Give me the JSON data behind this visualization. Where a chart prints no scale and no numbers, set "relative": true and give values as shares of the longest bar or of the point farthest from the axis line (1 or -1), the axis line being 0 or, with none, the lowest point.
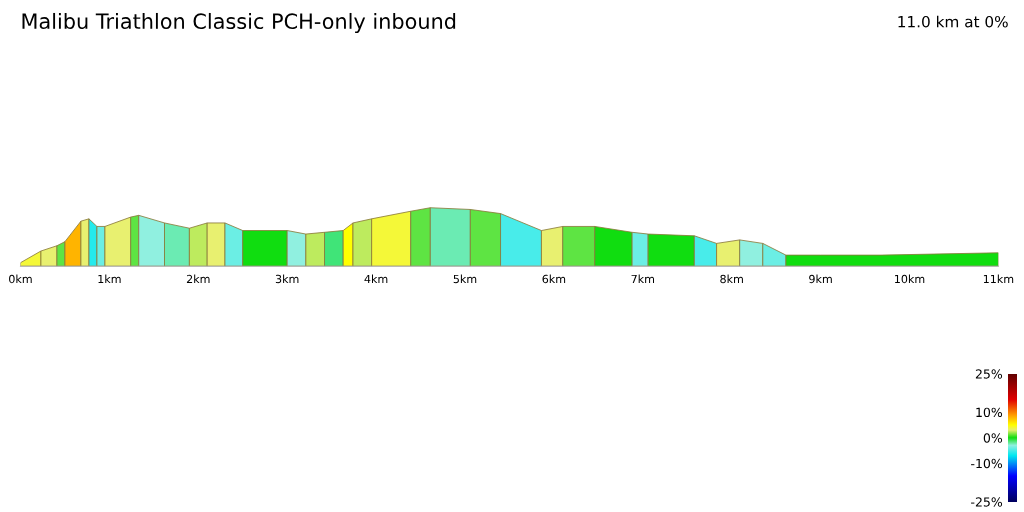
{
  "chart_data": {
    "type": "area",
    "relative": true,
    "title": "Malibu Triathlon Classic PCH-only inbound",
    "annotations": [
      "11.0 km at 0%"
    ],
    "series": [
      {
        "x": [
          0,
          0.23
        ],
        "values": [
          0.06,
          0.26
        ],
        "color": "#f4f838"
      },
      {
        "x": [
          0.23,
          0.41
        ],
        "values": [
          0.26,
          0.35
        ],
        "color": "#e8f070"
      },
      {
        "x": [
          0.41,
          0.5
        ],
        "values": [
          0.35,
          0.42
        ],
        "color": "#5ee443"
      },
      {
        "x": [
          0.5,
          0.68
        ],
        "values": [
          0.42,
          0.77
        ],
        "color": "#ffb400"
      },
      {
        "x": [
          0.68,
          0.77
        ],
        "values": [
          0.77,
          0.81
        ],
        "color": "#e8f070"
      },
      {
        "x": [
          0.77,
          0.86
        ],
        "values": [
          0.81,
          0.68
        ],
        "color": "#25eaec"
      },
      {
        "x": [
          0.86,
          0.95
        ],
        "values": [
          0.68,
          0.68
        ],
        "color": "#6beee4"
      },
      {
        "x": [
          0.95,
          1.24
        ],
        "values": [
          0.68,
          0.84
        ],
        "color": "#e8f070"
      },
      {
        "x": [
          1.24,
          1.33
        ],
        "values": [
          0.84,
          0.87
        ],
        "color": "#5ee443"
      },
      {
        "x": [
          1.33,
          1.62
        ],
        "values": [
          0.87,
          0.74
        ],
        "color": "#90f0e0"
      },
      {
        "x": [
          1.62,
          1.9
        ],
        "values": [
          0.74,
          0.65
        ],
        "color": "#6bebb3"
      },
      {
        "x": [
          1.9,
          2.1
        ],
        "values": [
          0.65,
          0.74
        ],
        "color": "#bdeb5e"
      },
      {
        "x": [
          2.1,
          2.3
        ],
        "values": [
          0.74,
          0.74
        ],
        "color": "#e8f070"
      },
      {
        "x": [
          2.3,
          2.5
        ],
        "values": [
          0.74,
          0.61
        ],
        "color": "#6beee4"
      },
      {
        "x": [
          2.5,
          3.0
        ],
        "values": [
          0.61,
          0.61
        ],
        "color": "#10dd10"
      },
      {
        "x": [
          3.0,
          3.21
        ],
        "values": [
          0.61,
          0.55
        ],
        "color": "#90f0e0"
      },
      {
        "x": [
          3.21,
          3.42
        ],
        "values": [
          0.55,
          0.58
        ],
        "color": "#bdeb5e"
      },
      {
        "x": [
          3.42,
          3.63
        ],
        "values": [
          0.58,
          0.61
        ],
        "color": "#40e478"
      },
      {
        "x": [
          3.63,
          3.74
        ],
        "values": [
          0.61,
          0.74
        ],
        "color": "#ffff00"
      },
      {
        "x": [
          3.74,
          3.95
        ],
        "values": [
          0.74,
          0.81
        ],
        "color": "#bdeb5e"
      },
      {
        "x": [
          3.95,
          4.39
        ],
        "values": [
          0.81,
          0.94
        ],
        "color": "#f4f838"
      },
      {
        "x": [
          4.39,
          4.61
        ],
        "values": [
          0.94,
          1
        ],
        "color": "#5ee443"
      },
      {
        "x": [
          4.61,
          5.06
        ],
        "values": [
          1,
          0.97
        ],
        "color": "#6bebb3"
      },
      {
        "x": [
          5.06,
          5.4
        ],
        "values": [
          0.97,
          0.9
        ],
        "color": "#5ee443"
      },
      {
        "x": [
          5.4,
          5.86
        ],
        "values": [
          0.9,
          0.61
        ],
        "color": "#48ecea"
      },
      {
        "x": [
          5.86,
          6.1
        ],
        "values": [
          0.61,
          0.68
        ],
        "color": "#e8f070"
      },
      {
        "x": [
          6.1,
          6.46
        ],
        "values": [
          0.68,
          0.68
        ],
        "color": "#5ee443"
      },
      {
        "x": [
          6.46,
          6.88
        ],
        "values": [
          0.68,
          0.58
        ],
        "color": "#10dd10"
      },
      {
        "x": [
          6.88,
          7.06
        ],
        "values": [
          0.58,
          0.55
        ],
        "color": "#6beee4"
      },
      {
        "x": [
          7.06,
          7.58
        ],
        "values": [
          0.55,
          0.52
        ],
        "color": "#10dd10"
      },
      {
        "x": [
          7.58,
          7.83
        ],
        "values": [
          0.52,
          0.39
        ],
        "color": "#48ecea"
      },
      {
        "x": [
          7.83,
          8.09
        ],
        "values": [
          0.39,
          0.45
        ],
        "color": "#e8f070"
      },
      {
        "x": [
          8.09,
          8.35
        ],
        "values": [
          0.45,
          0.39
        ],
        "color": "#90f0e0"
      },
      {
        "x": [
          8.35,
          8.61
        ],
        "values": [
          0.39,
          0.19
        ],
        "color": "#6beee4"
      },
      {
        "x": [
          8.61,
          9.0,
          9.68,
          11.0
        ],
        "values": [
          0.19,
          0.19,
          0.19,
          0.23
        ],
        "color": "#10dd10"
      }
    ],
    "xlim": [
      0,
      11
    ],
    "xticks": [
      {
        "value": 0,
        "label": "0km"
      },
      {
        "value": 1,
        "label": "1km"
      },
      {
        "value": 2,
        "label": "2km"
      },
      {
        "value": 3,
        "label": "3km"
      },
      {
        "value": 4,
        "label": "4km"
      },
      {
        "value": 5,
        "label": "5km"
      },
      {
        "value": 6,
        "label": "6km"
      },
      {
        "value": 7,
        "label": "7km"
      },
      {
        "value": 8,
        "label": "8km"
      },
      {
        "value": 9,
        "label": "9km"
      },
      {
        "value": 10,
        "label": "10km"
      },
      {
        "value": 11,
        "label": "11km"
      }
    ],
    "clim": [
      -25,
      25
    ],
    "cticks": [
      {
        "value": 25,
        "label": "25%"
      },
      {
        "value": 10,
        "label": "10%"
      },
      {
        "value": 0,
        "label": "0%"
      },
      {
        "value": -10,
        "label": "-10%"
      },
      {
        "value": -25,
        "label": "-25%"
      }
    ]
  }
}
